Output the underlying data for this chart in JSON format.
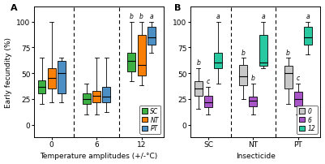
{
  "panel_A": {
    "title": "A",
    "xlabel": "Temperature amplitudes (+/-°C)",
    "ylabel": "Early fecundity (%)",
    "groups": [
      "0",
      "6",
      "12"
    ],
    "series": [
      "SC",
      "NT",
      "PT"
    ],
    "colors": [
      "#3cb043",
      "#f97f07",
      "#4b8fc4"
    ],
    "boxes": {
      "0": {
        "SC": {
          "whislo": 20,
          "q1": 30,
          "med": 37,
          "q3": 43,
          "whishi": 65
        },
        "NT": {
          "whislo": 22,
          "q1": 35,
          "med": 45,
          "q3": 55,
          "whishi": 100
        },
        "PT": {
          "whislo": 22,
          "q1": 30,
          "med": 50,
          "q3": 62,
          "whishi": 65
        }
      },
      "6": {
        "SC": {
          "whislo": 10,
          "q1": 20,
          "med": 25,
          "q3": 30,
          "whishi": 40
        },
        "NT": {
          "whislo": 10,
          "q1": 22,
          "med": 28,
          "q3": 33,
          "whishi": 65
        },
        "PT": {
          "whislo": 12,
          "q1": 22,
          "med": 27,
          "q3": 37,
          "whishi": 65
        }
      },
      "12": {
        "SC": {
          "whislo": 42,
          "q1": 52,
          "med": 62,
          "q3": 70,
          "whishi": 100
        },
        "NT": {
          "whislo": 38,
          "q1": 48,
          "med": 58,
          "q3": 87,
          "whishi": 100
        },
        "PT": {
          "whislo": 70,
          "q1": 78,
          "med": 85,
          "q3": 95,
          "whishi": 100
        }
      }
    },
    "letters": {
      "12": [
        "b",
        "b",
        "a"
      ]
    },
    "ylim": [
      -12,
      115
    ],
    "yticks": [
      0,
      25,
      50,
      75,
      100
    ]
  },
  "panel_B": {
    "title": "B",
    "xlabel": "Insecticide",
    "groups": [
      "SC",
      "NT",
      "PT"
    ],
    "series": [
      "0",
      "6",
      "12"
    ],
    "colors": [
      "#c8c8c8",
      "#a855c8",
      "#28c8a0"
    ],
    "boxes": {
      "SC": {
        "0": {
          "whislo": 15,
          "q1": 28,
          "med": 35,
          "q3": 42,
          "whishi": 55
        },
        "6": {
          "whislo": 10,
          "q1": 17,
          "med": 22,
          "q3": 28,
          "whishi": 37
        },
        "12": {
          "whislo": 40,
          "q1": 55,
          "med": 60,
          "q3": 70,
          "whishi": 100
        }
      },
      "NT": {
        "0": {
          "whislo": 25,
          "q1": 38,
          "med": 47,
          "q3": 58,
          "whishi": 65
        },
        "6": {
          "whislo": 10,
          "q1": 18,
          "med": 23,
          "q3": 27,
          "whishi": 40
        },
        "12": {
          "whislo": 55,
          "q1": 57,
          "med": 60,
          "q3": 87,
          "whishi": 100
        }
      },
      "PT": {
        "0": {
          "whislo": 20,
          "q1": 35,
          "med": 50,
          "q3": 57,
          "whishi": 65
        },
        "6": {
          "whislo": 10,
          "q1": 18,
          "med": 25,
          "q3": 32,
          "whishi": 40
        },
        "12": {
          "whislo": 68,
          "q1": 78,
          "med": 85,
          "q3": 95,
          "whishi": 100
        }
      }
    },
    "letters": {
      "SC": [
        "b",
        "c",
        "a"
      ],
      "NT": [
        "b",
        "b",
        "a"
      ],
      "PT": [
        "b",
        "c",
        "a"
      ]
    },
    "ylim": [
      -12,
      115
    ],
    "yticks": [
      0,
      25,
      50,
      75,
      100
    ]
  }
}
